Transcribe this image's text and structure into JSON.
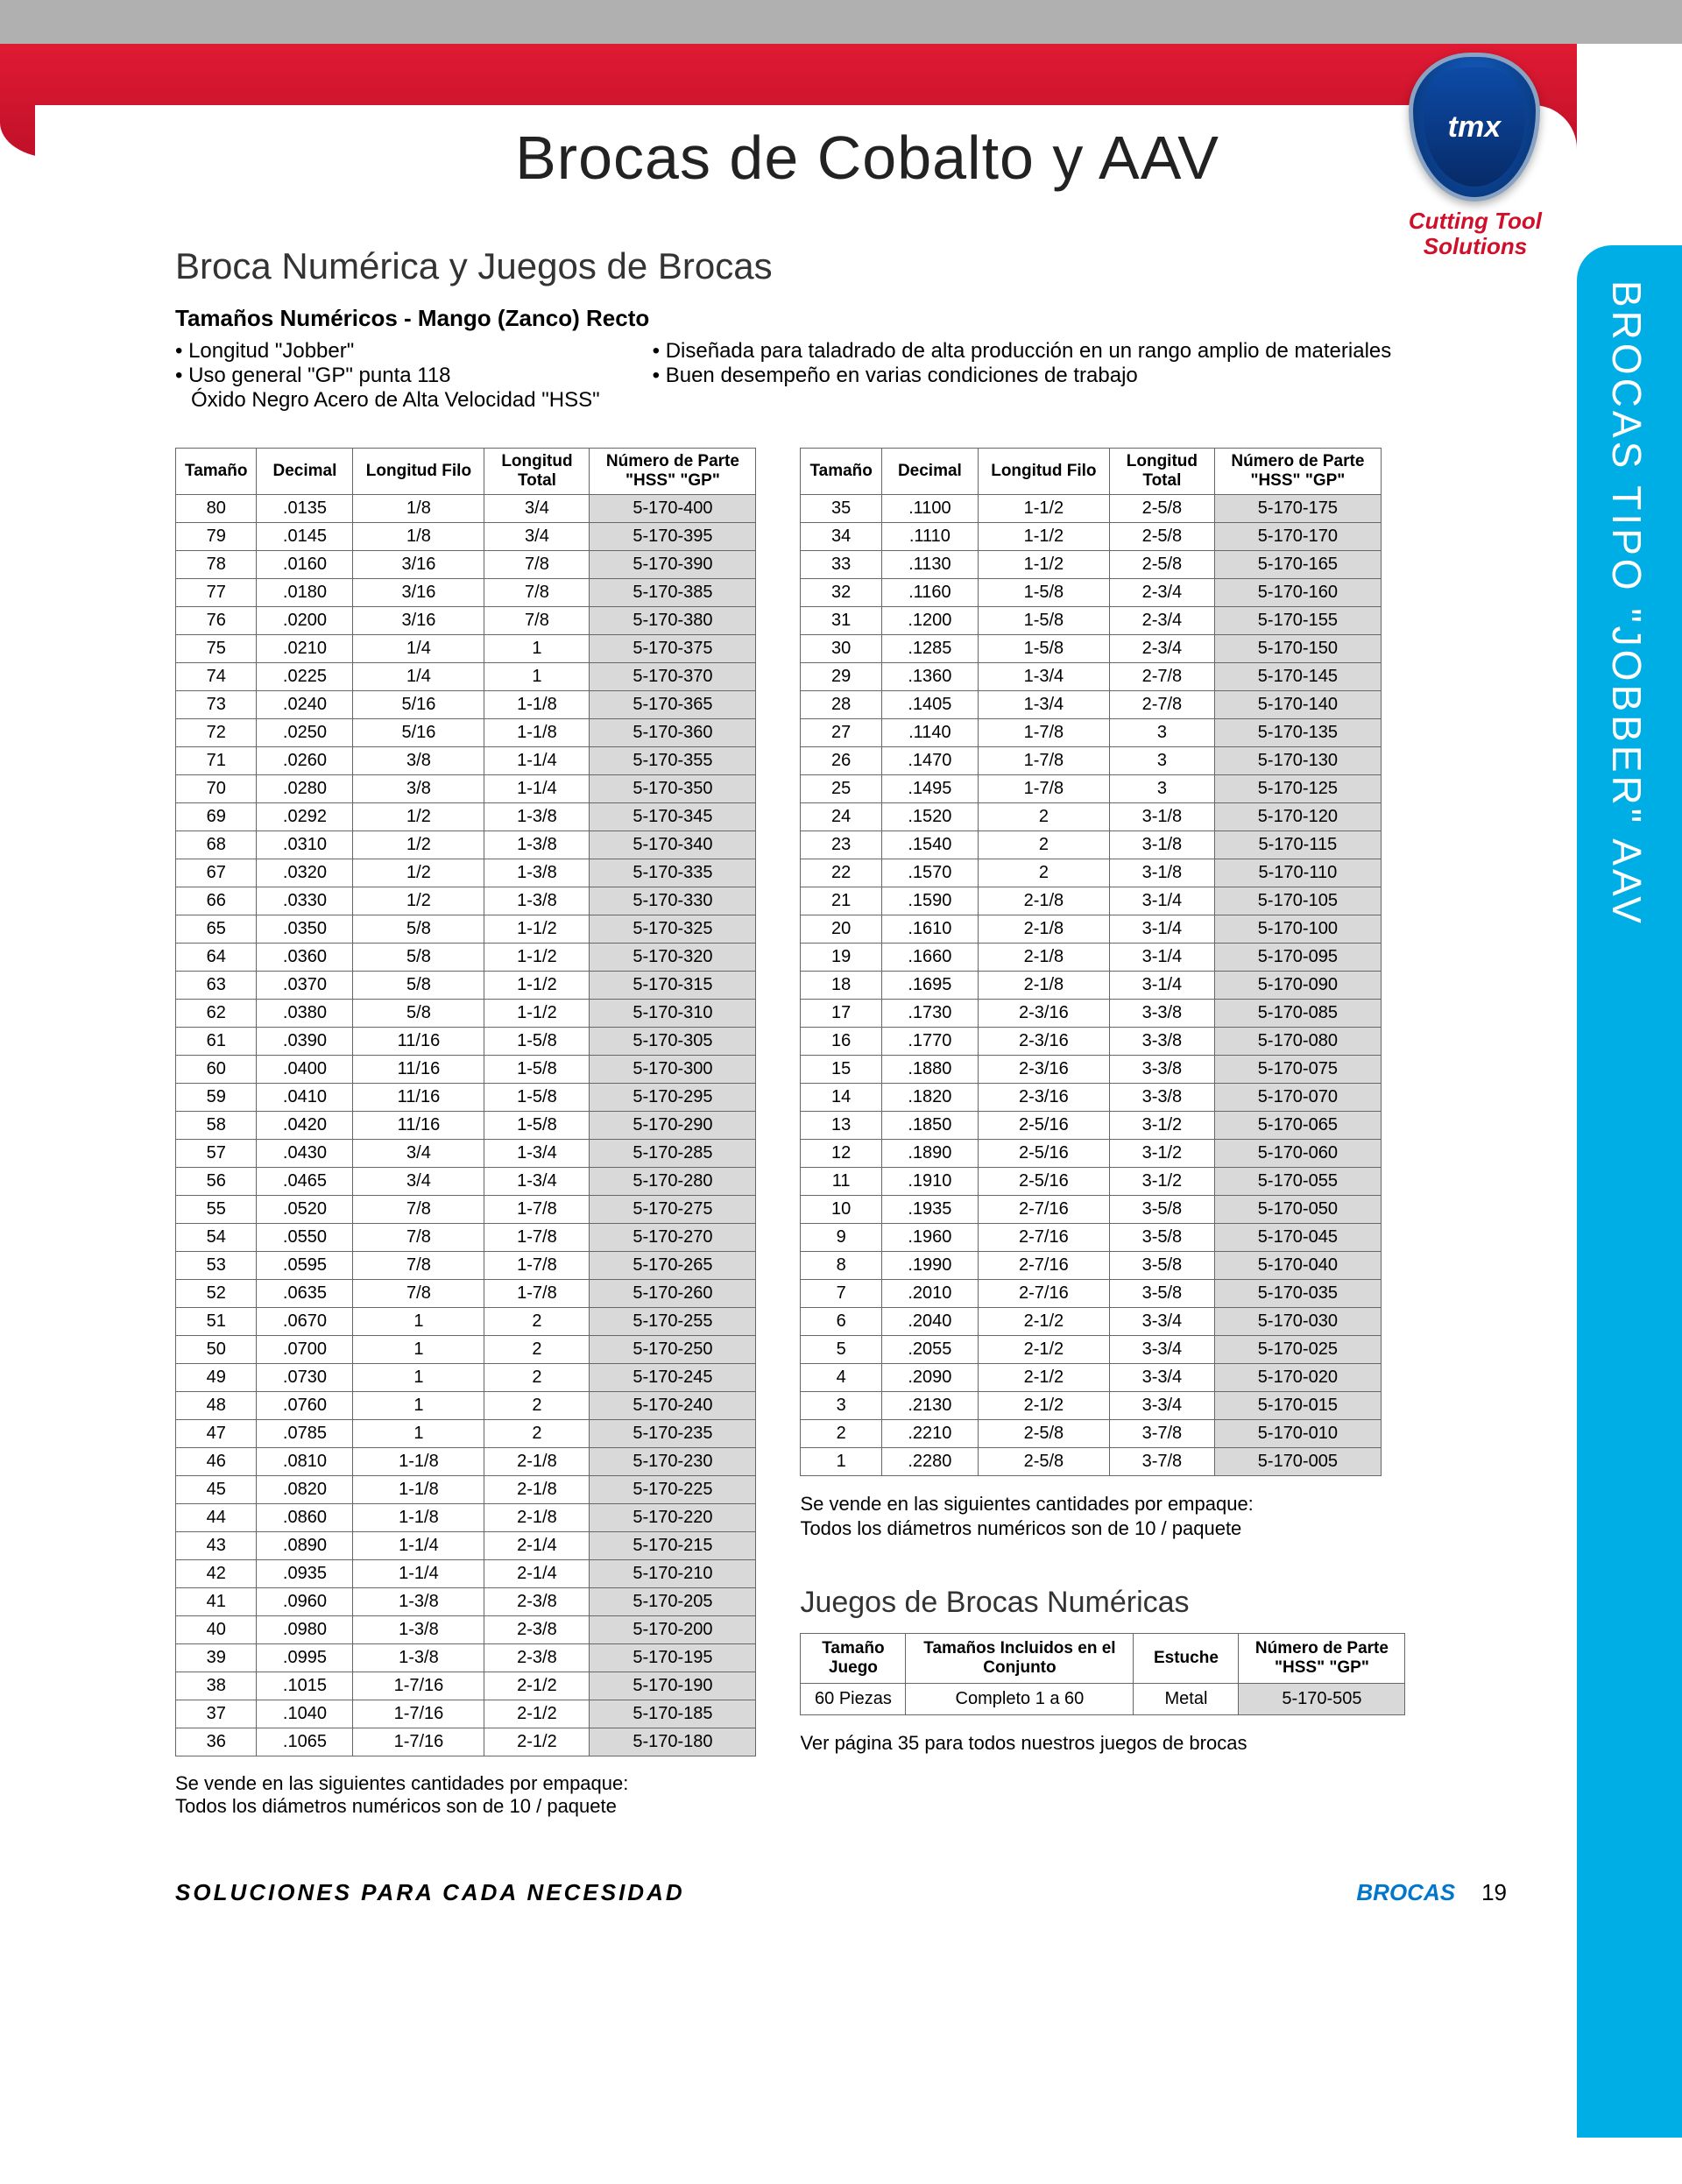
{
  "header": {
    "title": "Brocas de Cobalto y AAV",
    "logo_text": "tmx",
    "logo_tag1": "Cutting Tool",
    "logo_tag2": "Solutions"
  },
  "side_tab": "BROCAS TIPO \"JOBBER\" AAV",
  "subtitle": "Broca Numérica y Juegos de Brocas",
  "spec_head": "Tamaños Numéricos - Mango (Zanco) Recto",
  "bullets_left": [
    "Longitud \"Jobber\"",
    "Uso general \"GP\" punta 118"
  ],
  "bullets_left_indent": "Óxido Negro Acero de Alta Velocidad \"HSS\"",
  "bullets_right": [
    "Diseñada para taladrado de alta producción en un rango amplio de materiales",
    "Buen desempeño en varias condiciones de trabajo"
  ],
  "table_headers": {
    "tam": "Tamaño",
    "dec": "Decimal",
    "filo": "Longitud Filo",
    "tot": "Longitud Total",
    "part": "Número de Parte \"HSS\" \"GP\""
  },
  "table1": [
    [
      "80",
      ".0135",
      "1/8",
      "3/4",
      "5-170-400"
    ],
    [
      "79",
      ".0145",
      "1/8",
      "3/4",
      "5-170-395"
    ],
    [
      "78",
      ".0160",
      "3/16",
      "7/8",
      "5-170-390"
    ],
    [
      "77",
      ".0180",
      "3/16",
      "7/8",
      "5-170-385"
    ],
    [
      "76",
      ".0200",
      "3/16",
      "7/8",
      "5-170-380"
    ],
    [
      "75",
      ".0210",
      "1/4",
      "1",
      "5-170-375"
    ],
    [
      "74",
      ".0225",
      "1/4",
      "1",
      "5-170-370"
    ],
    [
      "73",
      ".0240",
      "5/16",
      "1-1/8",
      "5-170-365"
    ],
    [
      "72",
      ".0250",
      "5/16",
      "1-1/8",
      "5-170-360"
    ],
    [
      "71",
      ".0260",
      "3/8",
      "1-1/4",
      "5-170-355"
    ],
    [
      "70",
      ".0280",
      "3/8",
      "1-1/4",
      "5-170-350"
    ],
    [
      "69",
      ".0292",
      "1/2",
      "1-3/8",
      "5-170-345"
    ],
    [
      "68",
      ".0310",
      "1/2",
      "1-3/8",
      "5-170-340"
    ],
    [
      "67",
      ".0320",
      "1/2",
      "1-3/8",
      "5-170-335"
    ],
    [
      "66",
      ".0330",
      "1/2",
      "1-3/8",
      "5-170-330"
    ],
    [
      "65",
      ".0350",
      "5/8",
      "1-1/2",
      "5-170-325"
    ],
    [
      "64",
      ".0360",
      "5/8",
      "1-1/2",
      "5-170-320"
    ],
    [
      "63",
      ".0370",
      "5/8",
      "1-1/2",
      "5-170-315"
    ],
    [
      "62",
      ".0380",
      "5/8",
      "1-1/2",
      "5-170-310"
    ],
    [
      "61",
      ".0390",
      "11/16",
      "1-5/8",
      "5-170-305"
    ],
    [
      "60",
      ".0400",
      "11/16",
      "1-5/8",
      "5-170-300"
    ],
    [
      "59",
      ".0410",
      "11/16",
      "1-5/8",
      "5-170-295"
    ],
    [
      "58",
      ".0420",
      "11/16",
      "1-5/8",
      "5-170-290"
    ],
    [
      "57",
      ".0430",
      "3/4",
      "1-3/4",
      "5-170-285"
    ],
    [
      "56",
      ".0465",
      "3/4",
      "1-3/4",
      "5-170-280"
    ],
    [
      "55",
      ".0520",
      "7/8",
      "1-7/8",
      "5-170-275"
    ],
    [
      "54",
      ".0550",
      "7/8",
      "1-7/8",
      "5-170-270"
    ],
    [
      "53",
      ".0595",
      "7/8",
      "1-7/8",
      "5-170-265"
    ],
    [
      "52",
      ".0635",
      "7/8",
      "1-7/8",
      "5-170-260"
    ],
    [
      "51",
      ".0670",
      "1",
      "2",
      "5-170-255"
    ],
    [
      "50",
      ".0700",
      "1",
      "2",
      "5-170-250"
    ],
    [
      "49",
      ".0730",
      "1",
      "2",
      "5-170-245"
    ],
    [
      "48",
      ".0760",
      "1",
      "2",
      "5-170-240"
    ],
    [
      "47",
      ".0785",
      "1",
      "2",
      "5-170-235"
    ],
    [
      "46",
      ".0810",
      "1-1/8",
      "2-1/8",
      "5-170-230"
    ],
    [
      "45",
      ".0820",
      "1-1/8",
      "2-1/8",
      "5-170-225"
    ],
    [
      "44",
      ".0860",
      "1-1/8",
      "2-1/8",
      "5-170-220"
    ],
    [
      "43",
      ".0890",
      "1-1/4",
      "2-1/4",
      "5-170-215"
    ],
    [
      "42",
      ".0935",
      "1-1/4",
      "2-1/4",
      "5-170-210"
    ],
    [
      "41",
      ".0960",
      "1-3/8",
      "2-3/8",
      "5-170-205"
    ],
    [
      "40",
      ".0980",
      "1-3/8",
      "2-3/8",
      "5-170-200"
    ],
    [
      "39",
      ".0995",
      "1-3/8",
      "2-3/8",
      "5-170-195"
    ],
    [
      "38",
      ".1015",
      "1-7/16",
      "2-1/2",
      "5-170-190"
    ],
    [
      "37",
      ".1040",
      "1-7/16",
      "2-1/2",
      "5-170-185"
    ],
    [
      "36",
      ".1065",
      "1-7/16",
      "2-1/2",
      "5-170-180"
    ]
  ],
  "table2": [
    [
      "35",
      ".1100",
      "1-1/2",
      "2-5/8",
      "5-170-175"
    ],
    [
      "34",
      ".1110",
      "1-1/2",
      "2-5/8",
      "5-170-170"
    ],
    [
      "33",
      ".1130",
      "1-1/2",
      "2-5/8",
      "5-170-165"
    ],
    [
      "32",
      ".1160",
      "1-5/8",
      "2-3/4",
      "5-170-160"
    ],
    [
      "31",
      ".1200",
      "1-5/8",
      "2-3/4",
      "5-170-155"
    ],
    [
      "30",
      ".1285",
      "1-5/8",
      "2-3/4",
      "5-170-150"
    ],
    [
      "29",
      ".1360",
      "1-3/4",
      "2-7/8",
      "5-170-145"
    ],
    [
      "28",
      ".1405",
      "1-3/4",
      "2-7/8",
      "5-170-140"
    ],
    [
      "27",
      ".1140",
      "1-7/8",
      "3",
      "5-170-135"
    ],
    [
      "26",
      ".1470",
      "1-7/8",
      "3",
      "5-170-130"
    ],
    [
      "25",
      ".1495",
      "1-7/8",
      "3",
      "5-170-125"
    ],
    [
      "24",
      ".1520",
      "2",
      "3-1/8",
      "5-170-120"
    ],
    [
      "23",
      ".1540",
      "2",
      "3-1/8",
      "5-170-115"
    ],
    [
      "22",
      ".1570",
      "2",
      "3-1/8",
      "5-170-110"
    ],
    [
      "21",
      ".1590",
      "2-1/8",
      "3-1/4",
      "5-170-105"
    ],
    [
      "20",
      ".1610",
      "2-1/8",
      "3-1/4",
      "5-170-100"
    ],
    [
      "19",
      ".1660",
      "2-1/8",
      "3-1/4",
      "5-170-095"
    ],
    [
      "18",
      ".1695",
      "2-1/8",
      "3-1/4",
      "5-170-090"
    ],
    [
      "17",
      ".1730",
      "2-3/16",
      "3-3/8",
      "5-170-085"
    ],
    [
      "16",
      ".1770",
      "2-3/16",
      "3-3/8",
      "5-170-080"
    ],
    [
      "15",
      ".1880",
      "2-3/16",
      "3-3/8",
      "5-170-075"
    ],
    [
      "14",
      ".1820",
      "2-3/16",
      "3-3/8",
      "5-170-070"
    ],
    [
      "13",
      ".1850",
      "2-5/16",
      "3-1/2",
      "5-170-065"
    ],
    [
      "12",
      ".1890",
      "2-5/16",
      "3-1/2",
      "5-170-060"
    ],
    [
      "11",
      ".1910",
      "2-5/16",
      "3-1/2",
      "5-170-055"
    ],
    [
      "10",
      ".1935",
      "2-7/16",
      "3-5/8",
      "5-170-050"
    ],
    [
      "9",
      ".1960",
      "2-7/16",
      "3-5/8",
      "5-170-045"
    ],
    [
      "8",
      ".1990",
      "2-7/16",
      "3-5/8",
      "5-170-040"
    ],
    [
      "7",
      ".2010",
      "2-7/16",
      "3-5/8",
      "5-170-035"
    ],
    [
      "6",
      ".2040",
      "2-1/2",
      "3-3/4",
      "5-170-030"
    ],
    [
      "5",
      ".2055",
      "2-1/2",
      "3-3/4",
      "5-170-025"
    ],
    [
      "4",
      ".2090",
      "2-1/2",
      "3-3/4",
      "5-170-020"
    ],
    [
      "3",
      ".2130",
      "2-1/2",
      "3-3/4",
      "5-170-015"
    ],
    [
      "2",
      ".2210",
      "2-5/8",
      "3-7/8",
      "5-170-010"
    ],
    [
      "1",
      ".2280",
      "2-5/8",
      "3-7/8",
      "5-170-005"
    ]
  ],
  "note1": "Se vende en las siguientes cantidades por empaque:",
  "note2": "Todos los diámetros numéricos son de 10 / paquete",
  "sets_head": "Juegos de Brocas Numéricas",
  "sets_headers": {
    "tam": "Tamaño Juego",
    "inc": "Tamaños Incluidos en el Conjunto",
    "est": "Estuche",
    "part": "Número de Parte \"HSS\" \"GP\""
  },
  "sets_row": [
    "60 Piezas",
    "Completo 1 a 60",
    "Metal",
    "5-170-505"
  ],
  "sets_note": "Ver página 35 para todos nuestros juegos de brocas",
  "footer": {
    "left": "SOLUCIONES PARA CADA NECESIDAD",
    "right": "BROCAS",
    "page": "19"
  }
}
